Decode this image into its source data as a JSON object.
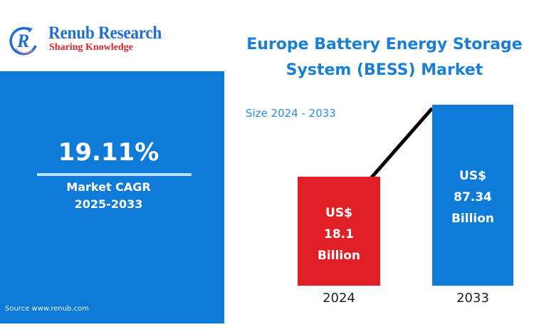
{
  "logo": {
    "name": "Renub Research",
    "tagline": "Sharing Knowledge",
    "icon": "renub-r-arrow-logo"
  },
  "cagr_panel": {
    "value": "19.11%",
    "label": "Market CAGR",
    "period": "2025-2033",
    "source": "Source  www.renub.com",
    "color": "#0f7bd9"
  },
  "chart_data": {
    "type": "bar",
    "title": "Europe Battery Energy Storage System (BESS) Market",
    "title_lines": [
      "Europe Battery Energy Storage",
      "System (BESS) Market"
    ],
    "subtitle": "Size 2024 - 2033",
    "categories": [
      "2024",
      "2033"
    ],
    "values": [
      18.1,
      87.34
    ],
    "unit": "US$ Billion",
    "data_labels": [
      {
        "prefix": "US$",
        "value": "18.1",
        "suffix": "Billion"
      },
      {
        "prefix": "US$",
        "value": "87.34",
        "suffix": "Billion"
      }
    ],
    "colors": [
      "#e01f26",
      "#0f7bd9"
    ],
    "trend_line": true,
    "xlabel": "",
    "ylabel": "",
    "grid": false
  }
}
